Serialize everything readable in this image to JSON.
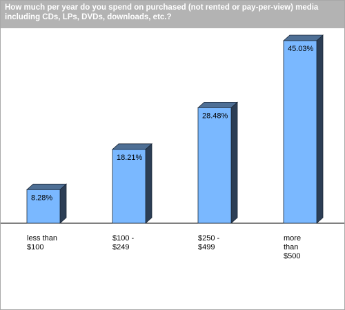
{
  "chart_data": {
    "type": "bar",
    "title": "How much per year do you spend on purchased (not rented or pay-per-view) media including CDs, LPs, DVDs, downloads, etc.?",
    "categories": [
      "less than\n$100",
      "$100 -\n$249",
      "$250 -\n$499",
      "more\nthan\n$500"
    ],
    "values": [
      8.28,
      18.21,
      28.48,
      45.03
    ],
    "value_labels": [
      "8.28%",
      "18.21%",
      "28.48%",
      "45.03%"
    ],
    "ylim": [
      0,
      50
    ],
    "grid": false,
    "legend": "none",
    "style": "3d",
    "colors": {
      "bar_front": "#7ab8ff",
      "bar_top": "#4e6f95",
      "bar_side": "#2c3e55",
      "title_bar": "#b3b3b3",
      "title_text": "#ffffff"
    }
  }
}
